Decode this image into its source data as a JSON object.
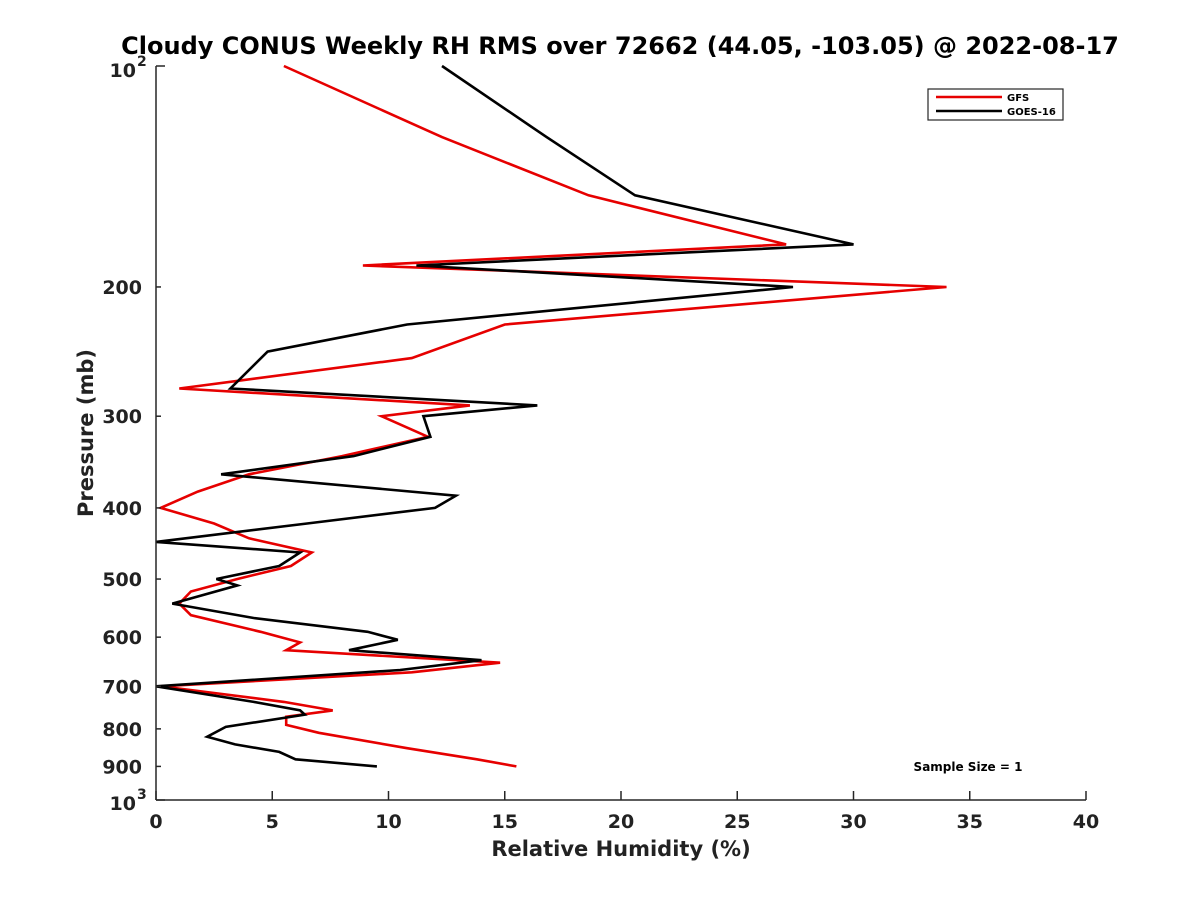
{
  "chart_data": {
    "type": "line",
    "title": "Cloudy CONUS Weekly RH RMS over 72662 (44.05, -103.05) @ 2022-08-17",
    "xlabel": "Relative Humidity (%)",
    "ylabel": "Pressure (mb)",
    "xlim": [
      0,
      40
    ],
    "ylim": [
      100,
      1000
    ],
    "y_scale": "log",
    "y_reversed": false,
    "x_ticks": [
      "0",
      "5",
      "10",
      "15",
      "20",
      "25",
      "30",
      "35",
      "40"
    ],
    "y_ticks": [
      {
        "value": 200,
        "label": "200"
      },
      {
        "value": 300,
        "label": "300"
      },
      {
        "value": 400,
        "label": "400"
      },
      {
        "value": 500,
        "label": "500"
      },
      {
        "value": 600,
        "label": "600"
      },
      {
        "value": 700,
        "label": "700"
      },
      {
        "value": 800,
        "label": "800"
      },
      {
        "value": 900,
        "label": "900"
      }
    ],
    "y_top_label": {
      "base": "10",
      "exp": "2"
    },
    "y_bottom_label": {
      "base": "10",
      "exp": "3"
    },
    "legend_position": "top-right",
    "grid": false,
    "series": [
      {
        "name": "GFS",
        "color": "#e60000",
        "points": [
          [
            5.5,
            100
          ],
          [
            12.3,
            125
          ],
          [
            18.6,
            150
          ],
          [
            27.1,
            175
          ],
          [
            8.9,
            187
          ],
          [
            34.0,
            200
          ],
          [
            15.0,
            225
          ],
          [
            11.0,
            250
          ],
          [
            1.0,
            275
          ],
          [
            13.5,
            290
          ],
          [
            9.7,
            300
          ],
          [
            11.7,
            320
          ],
          [
            8.0,
            340
          ],
          [
            4.0,
            360
          ],
          [
            1.8,
            380
          ],
          [
            0.2,
            400
          ],
          [
            2.5,
            420
          ],
          [
            4.0,
            440
          ],
          [
            6.7,
            460
          ],
          [
            5.8,
            480
          ],
          [
            3.5,
            500
          ],
          [
            1.5,
            520
          ],
          [
            1.0,
            540
          ],
          [
            1.5,
            560
          ],
          [
            4.5,
            590
          ],
          [
            6.2,
            610
          ],
          [
            5.6,
            625
          ],
          [
            14.8,
            650
          ],
          [
            11.0,
            670
          ],
          [
            0.2,
            700
          ],
          [
            5.5,
            735
          ],
          [
            7.6,
            755
          ],
          [
            5.6,
            770
          ],
          [
            5.6,
            790
          ],
          [
            7.0,
            810
          ],
          [
            10.8,
            850
          ],
          [
            13.8,
            880
          ],
          [
            15.5,
            900
          ]
        ]
      },
      {
        "name": "GOES-16",
        "color": "#000000",
        "points": [
          [
            12.3,
            100
          ],
          [
            16.8,
            125
          ],
          [
            20.6,
            150
          ],
          [
            30.0,
            175
          ],
          [
            11.2,
            187
          ],
          [
            27.4,
            200
          ],
          [
            10.8,
            225
          ],
          [
            4.8,
            245
          ],
          [
            3.2,
            275
          ],
          [
            16.4,
            290
          ],
          [
            11.5,
            300
          ],
          [
            11.8,
            320
          ],
          [
            8.5,
            340
          ],
          [
            2.8,
            360
          ],
          [
            12.9,
            385
          ],
          [
            12.0,
            400
          ],
          [
            6.5,
            420
          ],
          [
            0.0,
            445
          ],
          [
            6.2,
            460
          ],
          [
            5.3,
            480
          ],
          [
            2.6,
            500
          ],
          [
            3.5,
            510
          ],
          [
            0.7,
            540
          ],
          [
            4.2,
            565
          ],
          [
            9.1,
            590
          ],
          [
            10.4,
            605
          ],
          [
            8.3,
            625
          ],
          [
            14.0,
            645
          ],
          [
            10.5,
            665
          ],
          [
            0.0,
            700
          ],
          [
            4.2,
            735
          ],
          [
            6.2,
            755
          ],
          [
            6.4,
            765
          ],
          [
            3.0,
            795
          ],
          [
            2.2,
            820
          ],
          [
            3.4,
            840
          ],
          [
            5.3,
            860
          ],
          [
            6.0,
            880
          ],
          [
            9.5,
            900
          ]
        ]
      }
    ],
    "annotation": "Sample Size = 1"
  }
}
